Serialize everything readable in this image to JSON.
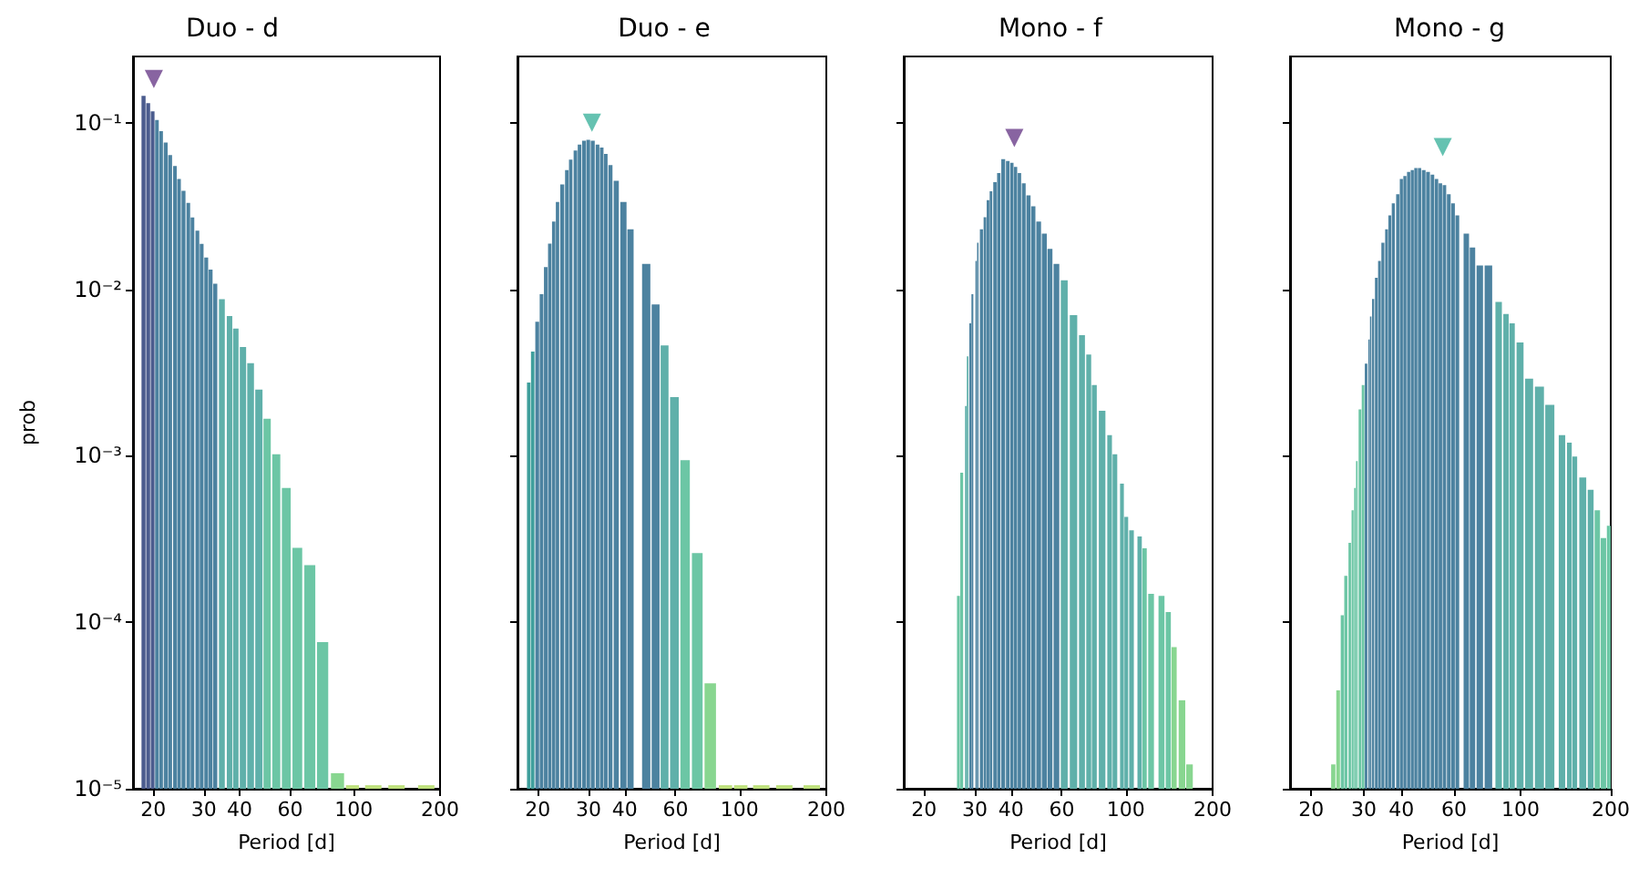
{
  "chart_data": [
    {
      "type": "bar",
      "title": "Duo - d",
      "xlabel": "Period [d]",
      "ylabel": "prob",
      "log": "xy",
      "xlim": [
        17,
        200
      ],
      "xticks": [
        20,
        30,
        40,
        60,
        100,
        200
      ],
      "ylim": [
        1e-05,
        0.25
      ],
      "yticks": [
        {
          "value": 1e-05,
          "label": "10⁻⁵"
        },
        {
          "value": 0.0001,
          "label": "10⁻⁴"
        },
        {
          "value": 0.001,
          "label": "10⁻³"
        },
        {
          "value": 0.01,
          "label": "10⁻²"
        },
        {
          "value": 0.1,
          "label": "10⁻¹"
        }
      ],
      "marker": "triangle",
      "series": [
        {
          "x": [
            18.5,
            19.2,
            19.9,
            20.6,
            21.3,
            22.1,
            22.9,
            23.8,
            24.6,
            25.5,
            26.5,
            27.4,
            28.5,
            29.5,
            30.6,
            31.7,
            32.9,
            34.7,
            36.9,
            38.8,
            41.1,
            43.7,
            46.7,
            49.9,
            53.7,
            58.2,
            63.6,
            70.3,
            77.9,
            87.8,
            99,
            117,
            141,
            179
          ],
          "values": [
            0.145,
            0.131,
            0.117,
            0.104,
            0.089,
            0.076,
            0.064,
            0.055,
            0.046,
            0.039,
            0.033,
            0.027,
            0.0225,
            0.0187,
            0.0155,
            0.0131,
            0.0108,
            0.0087,
            0.0069,
            0.0058,
            0.0045,
            0.0036,
            0.0025,
            0.00167,
            0.00102,
            0.00064,
            0.00028,
            0.00022,
            7.6e-05,
            1.24e-05,
            1.05e-05,
            1.05e-05,
            1.05e-05,
            1.05e-05
          ],
          "colors": [
            "#4b5c8e",
            "#4b5c8e",
            "#4b5c8e",
            "#4c82a0",
            "#4c82a0",
            "#4c82a0",
            "#4c82a0",
            "#4c82a0",
            "#4c82a0",
            "#4c82a0",
            "#4c82a0",
            "#4c82a0",
            "#4c82a0",
            "#4c82a0",
            "#4c82a0",
            "#4c82a0",
            "#4c82a0",
            "#5fb0aa",
            "#5fb0aa",
            "#5fb0aa",
            "#5fb0aa",
            "#5fb0aa",
            "#5fb0aa",
            "#6cc6a5",
            "#6cc6a5",
            "#6cc6a5",
            "#6cc6a5",
            "#6cc6a5",
            "#6cc6a5",
            "#88d690",
            "#bde07b",
            "#bde07b",
            "#bde07b",
            "#bde07b"
          ]
        },
        {
          "type": "scatter",
          "x": [
            20.1
          ],
          "values": [
            0.183
          ],
          "color": "#6a3d8a"
        }
      ]
    },
    {
      "type": "bar",
      "title": "Duo - e",
      "xlabel": "Period [d]",
      "log": "xy",
      "xlim": [
        17,
        200
      ],
      "xticks": [
        20,
        30,
        40,
        60,
        100,
        200
      ],
      "ylim": [
        1e-05,
        0.25
      ],
      "yticks": [
        {
          "value": 1e-05,
          "label": null
        },
        {
          "value": 0.0001,
          "label": null
        },
        {
          "value": 0.001,
          "label": null
        },
        {
          "value": 0.01,
          "label": null
        },
        {
          "value": 0.1,
          "label": null
        }
      ],
      "tick_labels": "x",
      "marker": "triangle",
      "series": [
        {
          "x": [
            18.6,
            19.2,
            19.9,
            20.6,
            21.3,
            22.0,
            22.7,
            23.4,
            24.3,
            25.2,
            26.0,
            27.0,
            27.9,
            28.9,
            29.9,
            31.0,
            32.2,
            33.3,
            34.4,
            35.7,
            37.4,
            39.6,
            41.9,
            47.5,
            51.2,
            55.0,
            59.5,
            64.8,
            71.4,
            79.2,
            89.4,
            101,
            119,
            143,
            178
          ],
          "values": [
            0.00275,
            0.00422,
            0.00637,
            0.00935,
            0.0136,
            0.0188,
            0.0255,
            0.0334,
            0.0426,
            0.052,
            0.06,
            0.068,
            0.074,
            0.078,
            0.079,
            0.078,
            0.074,
            0.071,
            0.065,
            0.0556,
            0.0448,
            0.0334,
            0.0229,
            0.0142,
            0.0081,
            0.0046,
            0.00225,
            0.00094,
            0.00026,
            4.3e-05,
            1.05e-05,
            1.05e-05,
            1.05e-05,
            1.05e-05,
            1.05e-05
          ],
          "colors": [
            "#3f9f9c",
            "#3f9f9c",
            "#4c82a0",
            "#4c82a0",
            "#4c82a0",
            "#4c82a0",
            "#4c82a0",
            "#4c82a0",
            "#4c82a0",
            "#4c82a0",
            "#4c82a0",
            "#4c82a0",
            "#4c82a0",
            "#4c82a0",
            "#4c82a0",
            "#4c82a0",
            "#4c82a0",
            "#4c82a0",
            "#4c82a0",
            "#4c82a0",
            "#4c82a0",
            "#4c82a0",
            "#4c82a0",
            "#4c82a0",
            "#4c82a0",
            "#5fb0aa",
            "#5fb0aa",
            "#6cc6a5",
            "#6cc6a5",
            "#88d690",
            "#bde07b",
            "#bde07b",
            "#bde07b",
            "#bde07b",
            "#bde07b"
          ]
        },
        {
          "type": "scatter",
          "x": [
            30.8
          ],
          "values": [
            0.1
          ],
          "color": "#3fb39e"
        }
      ]
    },
    {
      "type": "bar",
      "title": "Mono - f",
      "xlabel": "Period [d]",
      "log": "xy",
      "xlim": [
        17,
        200
      ],
      "xticks": [
        20,
        30,
        40,
        60,
        100,
        200
      ],
      "ylim": [
        1e-05,
        0.25
      ],
      "yticks": [
        {
          "value": 1e-05,
          "label": null
        },
        {
          "value": 0.0001,
          "label": null
        },
        {
          "value": 0.001,
          "label": null
        },
        {
          "value": 0.01,
          "label": null
        },
        {
          "value": 0.1,
          "label": null
        }
      ],
      "tick_labels": "x",
      "marker": "triangle",
      "series": [
        {
          "x": [
            26.3,
            27.0,
            27.9,
            28.3,
            28.9,
            29.4,
            30.3,
            30.7,
            31.6,
            32.5,
            33.3,
            34.1,
            35.2,
            36.3,
            37.6,
            39.0,
            40.3,
            41.5,
            42.8,
            44.3,
            46.0,
            47.8,
            49.9,
            52.2,
            54.6,
            57.5,
            61.2,
            65.9,
            70.5,
            74.4,
            77.8,
            82.8,
            87.9,
            91.7,
            97.0,
            100.4,
            104.7,
            111.7,
            116.2,
            122.4,
            133.0,
            140.4,
            147.1,
            156.6,
            166.3
          ],
          "values": [
            0.000144,
            0.00079,
            0.00199,
            0.00395,
            0.00625,
            0.00935,
            0.0148,
            0.019,
            0.0229,
            0.0271,
            0.0343,
            0.0388,
            0.044,
            0.0499,
            0.0605,
            0.059,
            0.0575,
            0.0543,
            0.0499,
            0.0433,
            0.0366,
            0.0315,
            0.0255,
            0.0216,
            0.0175,
            0.0142,
            0.0113,
            0.007,
            0.0053,
            0.00405,
            0.00266,
            0.00186,
            0.00133,
            0.00102,
            0.00068,
            0.00043,
            0.000357,
            0.000328,
            0.000278,
            0.000148,
            0.000144,
            0.000115,
            7.1e-05,
            3.4e-05,
            1.4e-05
          ],
          "colors": [
            "#6cc6a5",
            "#6cc6a5",
            "#5fb0aa",
            "#5fb0aa",
            "#4c82a0",
            "#4c82a0",
            "#4c82a0",
            "#4c82a0",
            "#4c82a0",
            "#4c82a0",
            "#4c82a0",
            "#4c82a0",
            "#4c82a0",
            "#4c82a0",
            "#4c82a0",
            "#4c82a0",
            "#4c82a0",
            "#4c82a0",
            "#4c82a0",
            "#4c82a0",
            "#4c82a0",
            "#4c82a0",
            "#4c82a0",
            "#4c82a0",
            "#4c82a0",
            "#4c82a0",
            "#5fb0aa",
            "#5fb0aa",
            "#5fb0aa",
            "#5fb0aa",
            "#5fb0aa",
            "#5fb0aa",
            "#5fb0aa",
            "#5fb0aa",
            "#5fb0aa",
            "#5fb0aa",
            "#5fb0aa",
            "#5fb0aa",
            "#6cc6a5",
            "#6cc6a5",
            "#6cc6a5",
            "#6cc6a5",
            "#88d690",
            "#88d690",
            "#88d690"
          ]
        },
        {
          "type": "scatter",
          "x": [
            41.1
          ],
          "values": [
            0.081
          ],
          "color": "#6a3d8a"
        }
      ]
    },
    {
      "type": "bar",
      "title": "Mono - g",
      "xlabel": "Period [d]",
      "log": "xy",
      "xlim": [
        17,
        200
      ],
      "xticks": [
        20,
        30,
        40,
        60,
        100,
        200
      ],
      "ylim": [
        1e-05,
        0.25
      ],
      "yticks": [
        {
          "value": 1e-05,
          "label": null
        },
        {
          "value": 0.0001,
          "label": null
        },
        {
          "value": 0.001,
          "label": null
        },
        {
          "value": 0.01,
          "label": null
        },
        {
          "value": 0.1,
          "label": null
        }
      ],
      "tick_labels": "x",
      "marker": "triangle",
      "series": [
        {
          "x": [
            23.7,
            24.6,
            25.4,
            26.1,
            26.9,
            27.5,
            28.0,
            28.4,
            29.1,
            29.8,
            30.5,
            31.2,
            31.6,
            32.2,
            33.0,
            33.8,
            34.7,
            35.7,
            36.6,
            37.6,
            38.9,
            40.0,
            41.1,
            42.3,
            43.5,
            44.7,
            46.0,
            47.5,
            49.1,
            50.8,
            52.4,
            54.0,
            55.7,
            57.6,
            59.5,
            61.5,
            65.9,
            69.1,
            73.1,
            78.1,
            84.5,
            89.4,
            93.7,
            99.6,
            106.8,
            115.6,
            125.2,
            137.5,
            145.5,
            151.7,
            161.3,
            171.4,
            180.4,
            189.1,
            198.2
          ],
          "values": [
            1.4e-05,
            3.9e-05,
            0.00011,
            0.00019,
            0.0003,
            0.00047,
            0.00064,
            0.00093,
            0.0019,
            0.00266,
            0.00357,
            0.00499,
            0.00686,
            0.00875,
            0.0117,
            0.0148,
            0.019,
            0.0229,
            0.0278,
            0.0328,
            0.0372,
            0.0459,
            0.0479,
            0.0507,
            0.052,
            0.0534,
            0.0534,
            0.052,
            0.0507,
            0.0487,
            0.0459,
            0.0433,
            0.0422,
            0.0372,
            0.0328,
            0.0278,
            0.0216,
            0.0178,
            0.0139,
            0.0139,
            0.0084,
            0.0071,
            0.00625,
            0.00479,
            0.0029,
            0.0026,
            0.00202,
            0.00133,
            0.0012,
            0.00099,
            0.00074,
            0.000625,
            0.00047,
            0.00032,
            0.00038
          ],
          "colors": [
            "#88d690",
            "#88d690",
            "#6cc6a5",
            "#6cc6a5",
            "#6cc6a5",
            "#6cc6a5",
            "#6cc6a5",
            "#6cc6a5",
            "#6cc6a5",
            "#6cc6a5",
            "#4c82a0",
            "#4c82a0",
            "#4c82a0",
            "#4c82a0",
            "#4c82a0",
            "#4c82a0",
            "#4c82a0",
            "#4c82a0",
            "#4c82a0",
            "#4c82a0",
            "#4c82a0",
            "#4c82a0",
            "#4c82a0",
            "#4c82a0",
            "#4c82a0",
            "#4c82a0",
            "#4c82a0",
            "#4c82a0",
            "#4c82a0",
            "#4c82a0",
            "#4c82a0",
            "#4c82a0",
            "#4c82a0",
            "#4c82a0",
            "#4c82a0",
            "#4c82a0",
            "#4c82a0",
            "#4c82a0",
            "#4c82a0",
            "#4c82a0",
            "#5fb0aa",
            "#5fb0aa",
            "#5fb0aa",
            "#5fb0aa",
            "#5fb0aa",
            "#5fb0aa",
            "#5fb0aa",
            "#5fb0aa",
            "#5fb0aa",
            "#5fb0aa",
            "#5fb0aa",
            "#5fb0aa",
            "#6cc6a5",
            "#6cc6a5",
            "#6cc6a5"
          ]
        },
        {
          "type": "scatter",
          "x": [
            55
          ],
          "values": [
            0.0715
          ],
          "color": "#3fb39e"
        }
      ]
    }
  ]
}
